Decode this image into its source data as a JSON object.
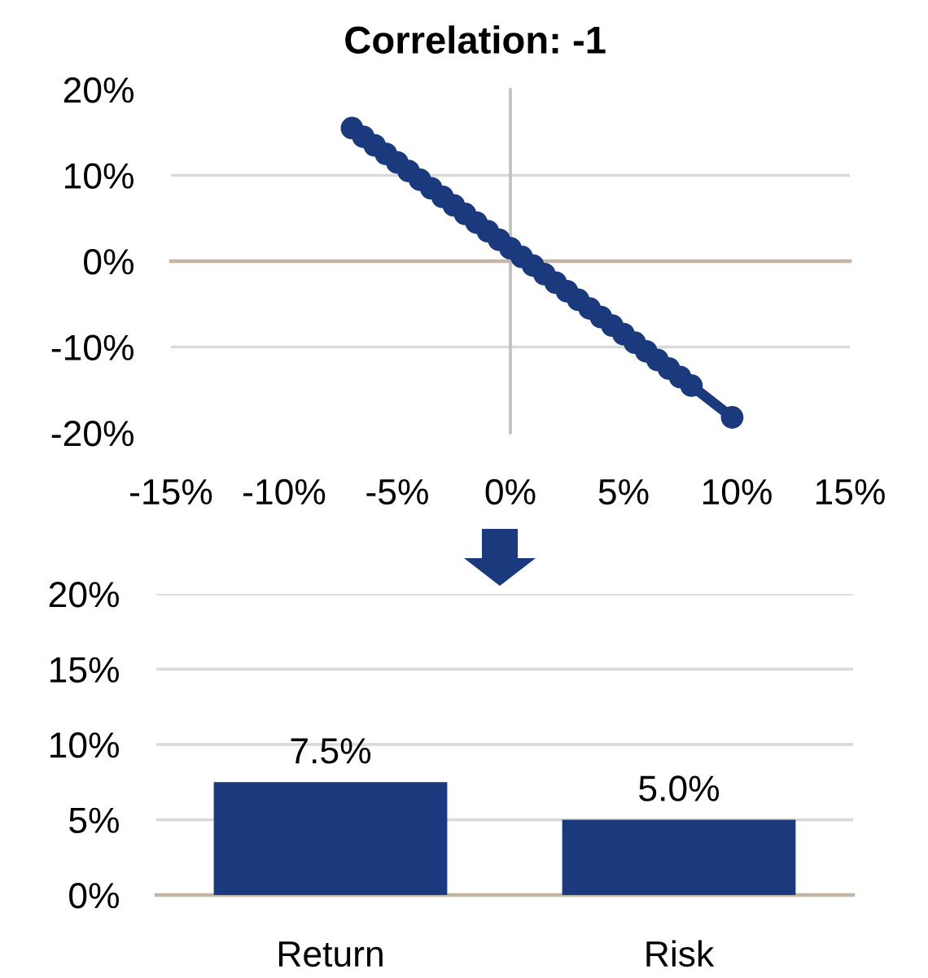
{
  "chart_data": [
    {
      "type": "scatter",
      "title": "Correlation: -1",
      "marker": "circle",
      "series": [
        {
          "color": "#1a3a7d",
          "x": [
            -7,
            -6.5,
            -6,
            -5.5,
            -5,
            -4.5,
            -4,
            -3.5,
            -3,
            -2.5,
            -2,
            -1.5,
            -1,
            -0.5,
            0,
            0.5,
            1,
            1.5,
            2,
            2.5,
            3,
            3.5,
            4,
            4.5,
            5,
            5.5,
            6,
            6.5,
            7,
            7.5,
            8,
            9.8
          ],
          "values": [
            15.5,
            14.5,
            13.5,
            12.5,
            11.5,
            10.5,
            9.5,
            8.5,
            7.5,
            6.5,
            5.5,
            4.5,
            3.5,
            2.5,
            1.5,
            0.5,
            -0.5,
            -1.5,
            -2.5,
            -3.5,
            -4.5,
            -5.5,
            -6.5,
            -7.5,
            -8.5,
            -9.5,
            -10.5,
            -11.5,
            -12.5,
            -13.5,
            -14.5,
            -18.2
          ]
        },
        {
          "type": "line",
          "color": "#1a3a7d",
          "marker": "none",
          "x": [
            8,
            9.8
          ],
          "values": [
            -14.5,
            -18.2
          ]
        }
      ],
      "xlim": [
        -15,
        15
      ],
      "xticks": [
        {
          "value": -15,
          "label": "-15%"
        },
        {
          "value": -10,
          "label": "-10%"
        },
        {
          "value": -5,
          "label": "-5%"
        },
        {
          "value": 0,
          "label": "0%"
        },
        {
          "value": 5,
          "label": "5%"
        },
        {
          "value": 10,
          "label": "10%"
        },
        {
          "value": 15,
          "label": "15%"
        }
      ],
      "ylim": [
        -20,
        20
      ],
      "yticks": [
        {
          "value": -20,
          "label": "-20%"
        },
        {
          "value": -10,
          "label": "-10%"
        },
        {
          "value": 0,
          "label": "0%"
        },
        {
          "value": 10,
          "label": "10%"
        },
        {
          "value": 20,
          "label": "20%"
        }
      ],
      "grid": "y"
    },
    {
      "type": "bar",
      "categories": [
        "Return",
        "Risk"
      ],
      "values": [
        7.5,
        5.0
      ],
      "color": "#1a3a7d",
      "value_labels": [
        "7.5%",
        "5.0%"
      ],
      "ylim": [
        0,
        20
      ],
      "yticks": [
        {
          "value": 0,
          "label": "0%"
        },
        {
          "value": 5,
          "label": "5%"
        },
        {
          "value": 10,
          "label": "10%"
        },
        {
          "value": 15,
          "label": "15%"
        },
        {
          "value": 20,
          "label": "20%"
        }
      ],
      "grid": "y"
    }
  ]
}
